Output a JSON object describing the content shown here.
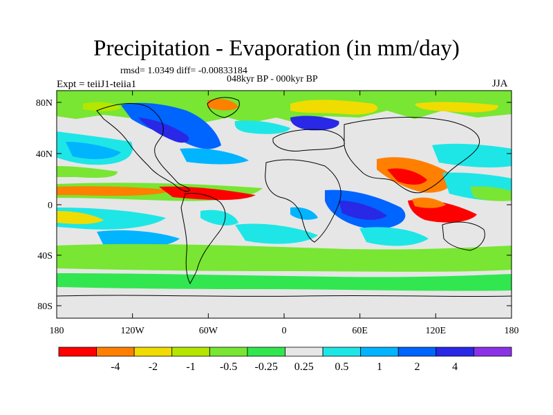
{
  "header": {
    "title": "Precipitation - Evaporation (in mm/day)",
    "stats": "rmsd= 1.0349 diff= -0.00833184",
    "period": "048kyr BP - 000kyr BP",
    "experiment": "Expt = teiiJ1-teiia1",
    "season": "JJA"
  },
  "map": {
    "lat_ticks": [
      "80N",
      "40N",
      "0",
      "40S",
      "80S"
    ],
    "lon_ticks": [
      "180",
      "120W",
      "60W",
      "0",
      "60E",
      "120E",
      "180"
    ]
  },
  "legend": {
    "colors": [
      "#ff0000",
      "#ff8000",
      "#f0dc00",
      "#b4e600",
      "#78e632",
      "#32e650",
      "#e6e6e6",
      "#1ee6e6",
      "#00b4ff",
      "#0064ff",
      "#2828e6",
      "#8c32e6"
    ],
    "labels": [
      "-4",
      "-2",
      "-1",
      "-0.5",
      "-0.25",
      "0.25",
      "0.5",
      "1",
      "2",
      "4"
    ]
  }
}
